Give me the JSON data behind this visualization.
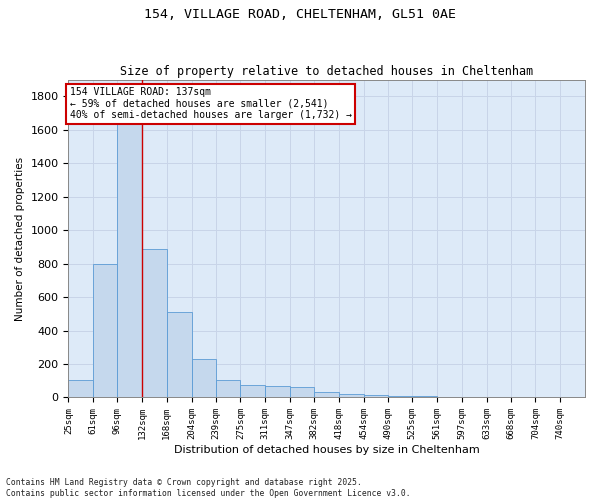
{
  "title_line1": "154, VILLAGE ROAD, CHELTENHAM, GL51 0AE",
  "title_line2": "Size of property relative to detached houses in Cheltenham",
  "xlabel": "Distribution of detached houses by size in Cheltenham",
  "ylabel": "Number of detached properties",
  "bar_labels": [
    "25sqm",
    "61sqm",
    "96sqm",
    "132sqm",
    "168sqm",
    "204sqm",
    "239sqm",
    "275sqm",
    "311sqm",
    "347sqm",
    "382sqm",
    "418sqm",
    "454sqm",
    "490sqm",
    "525sqm",
    "561sqm",
    "597sqm",
    "633sqm",
    "668sqm",
    "704sqm",
    "740sqm"
  ],
  "bar_values": [
    105,
    800,
    1680,
    890,
    510,
    230,
    105,
    75,
    70,
    65,
    30,
    20,
    15,
    10,
    8,
    5,
    5,
    5,
    5,
    5,
    5
  ],
  "bar_color": "#c5d8ed",
  "bar_edge_color": "#5b9bd5",
  "grid_color": "#c8d4e8",
  "background_color": "#ddeaf8",
  "annotation_text": "154 VILLAGE ROAD: 137sqm\n← 59% of detached houses are smaller (2,541)\n40% of semi-detached houses are larger (1,732) →",
  "annotation_box_color": "#ffffff",
  "annotation_box_edge_color": "#cc0000",
  "vline_color": "#cc0000",
  "vline_x_bin": 3,
  "ylim": [
    0,
    1900
  ],
  "yticks": [
    0,
    200,
    400,
    600,
    800,
    1000,
    1200,
    1400,
    1600,
    1800
  ],
  "footer_text": "Contains HM Land Registry data © Crown copyright and database right 2025.\nContains public sector information licensed under the Open Government Licence v3.0.",
  "bin_edges": [
    25,
    61,
    96,
    132,
    168,
    204,
    239,
    275,
    311,
    347,
    382,
    418,
    454,
    490,
    525,
    561,
    597,
    633,
    668,
    704,
    740,
    776
  ],
  "fig_width": 6.0,
  "fig_height": 5.0,
  "dpi": 100
}
